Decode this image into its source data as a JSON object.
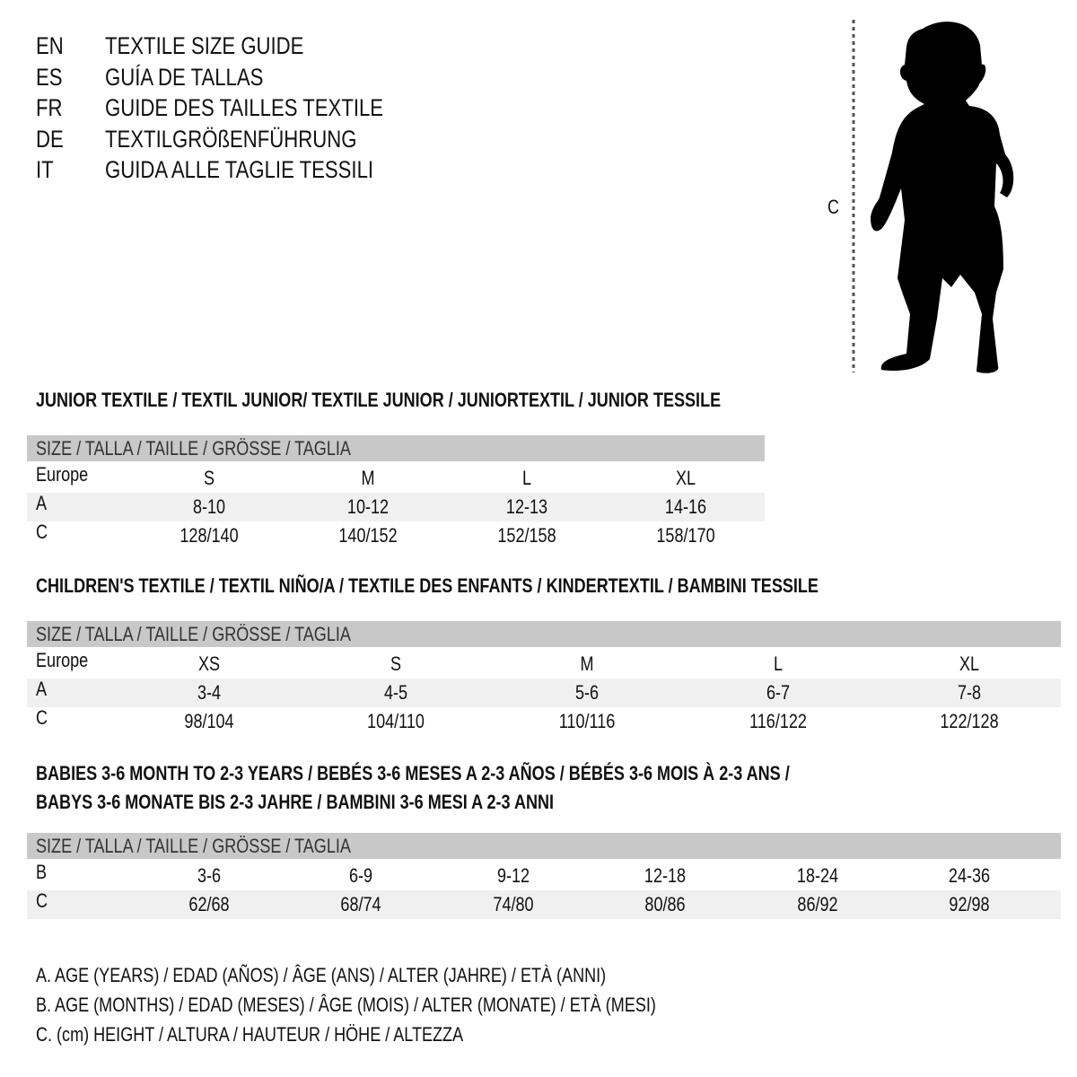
{
  "languages": [
    {
      "code": "EN",
      "text": "TEXTILE SIZE GUIDE"
    },
    {
      "code": "ES",
      "text": "GUÍA DE TALLAS"
    },
    {
      "code": "FR",
      "text": "GUIDE DES TAILLES TEXTILE"
    },
    {
      "code": "DE",
      "text": "TEXTILGRÖßENFÜHRUNG"
    },
    {
      "code": "IT",
      "text": "GUIDA ALLE TAGLIE TESSILI"
    }
  ],
  "figure": {
    "label": "C",
    "icon": "child-silhouette-icon"
  },
  "sections": [
    {
      "title": [
        "JUNIOR TEXTILE / TEXTIL JUNIOR/ TEXTILE JUNIOR / JUNIORTEXTIL / JUNIOR TESSILE"
      ],
      "header": "SIZE / TALLA / TAILLE / GRÖSSE / TAGLIA",
      "rows": [
        {
          "label": "Europe",
          "values": [
            "S",
            "M",
            "L",
            "XL"
          ]
        },
        {
          "label": "A",
          "values": [
            "8-10",
            "10-12",
            "12-13",
            "14-16"
          ]
        },
        {
          "label": "C",
          "values": [
            "128/140",
            "140/152",
            "152/158",
            "158/170"
          ]
        }
      ]
    },
    {
      "title": [
        "CHILDREN'S TEXTILE / TEXTIL NIÑO/A / TEXTILE DES ENFANTS / KINDERTEXTIL / BAMBINI TESSILE"
      ],
      "header": "SIZE / TALLA / TAILLE / GRÖSSE / TAGLIA",
      "rows": [
        {
          "label": "Europe",
          "values": [
            "XS",
            "S",
            "M",
            "L",
            "XL"
          ]
        },
        {
          "label": "A",
          "values": [
            "3-4",
            "4-5",
            "5-6",
            "6-7",
            "7-8"
          ]
        },
        {
          "label": "C",
          "values": [
            "98/104",
            "104/110",
            "110/116",
            "116/122",
            "122/128"
          ]
        }
      ]
    },
    {
      "title": [
        "BABIES 3-6 MONTH TO 2-3 YEARS / BEBÉS 3-6 MESES A 2-3 AÑOS / BÉBÉS 3-6 MOIS À 2-3 ANS /",
        "BABYS 3-6 MONATE BIS 2-3 JAHRE / BAMBINI 3-6 MESI A 2-3 ANNI"
      ],
      "header": "SIZE / TALLA / TAILLE / GRÖSSE / TAGLIA",
      "rows": [
        {
          "label": "B",
          "values": [
            "3-6",
            "6-9",
            "9-12",
            "12-18",
            "18-24",
            "24-36"
          ]
        },
        {
          "label": "C",
          "values": [
            "62/68",
            "68/74",
            "74/80",
            "80/86",
            "86/92",
            "92/98"
          ]
        }
      ]
    }
  ],
  "legend": [
    "A. AGE (YEARS) / EDAD (AÑOS) / ÂGE (ANS) / ALTER (JAHRE) / ETÀ (ANNI)",
    "B. AGE (MONTHS) / EDAD (MESES) / ÂGE (MOIS) / ALTER (MONATE) / ETÀ (MESI)",
    "C. (cm) HEIGHT / ALTURA / HAUTEUR / HÖHE / ALTEZZA"
  ]
}
